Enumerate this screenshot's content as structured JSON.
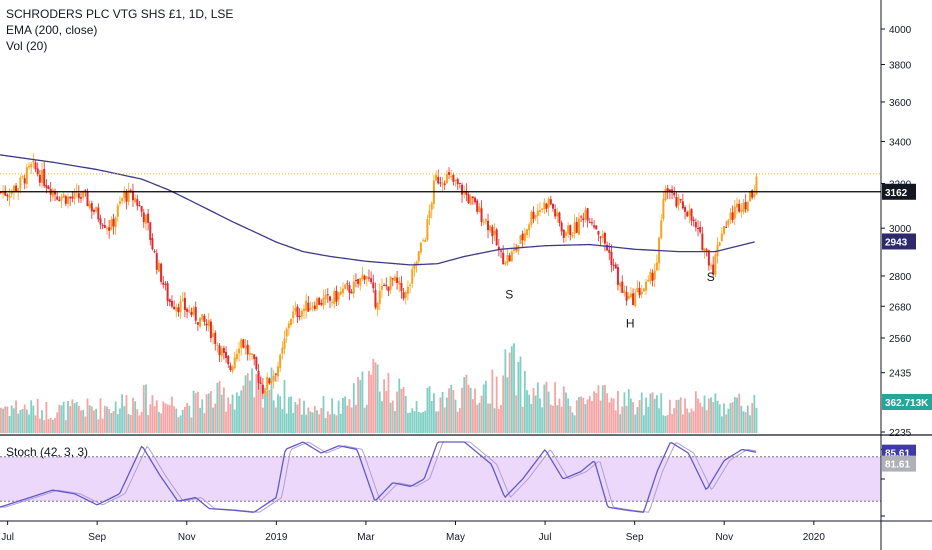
{
  "legend": {
    "symbol": "SCHRODERS PLC VTG SHS £1, 1D, LSE",
    "ema": "EMA (200, close)",
    "vol": "Vol (20)",
    "stoch": "Stoch (42, 3, 3)"
  },
  "colors": {
    "up": "#f7a21b",
    "down": "#e0282e",
    "ema": "#3f3a86",
    "vol_up": "#7fcfc4",
    "vol_down": "#f6a3a3",
    "stoch_k": "#6459c9",
    "stoch_bg": "#ecd8fb",
    "resistance": "#000000",
    "last_price": "#f7b500"
  },
  "chart_data": [
    {
      "type": "candlestick",
      "title": "SCHRODERS PLC VTG SHS £1, 1D, LSE",
      "y_axis_ticks": [
        2235,
        2435,
        2560,
        2680,
        2800,
        3000,
        3200,
        3400,
        3600,
        3800,
        4000
      ],
      "y_axis_tick_labels": [
        "2235",
        "2435",
        "2560",
        "2680",
        "2800",
        "3000",
        "3200",
        "3400",
        "3600",
        "3800",
        "4000"
      ],
      "x_axis_labels": [
        "Jul",
        "Sep",
        "Nov",
        "2019",
        "Mar",
        "May",
        "Jul",
        "Sep",
        "Nov",
        "2020"
      ],
      "x_axis_positions": [
        0.0,
        2.0,
        4.0,
        6.0,
        8.0,
        10.0,
        12.0,
        14.0,
        16.0,
        18.0
      ],
      "log_scale": true,
      "x_range_months_from_jul_2018": [
        -0.17,
        19.5
      ],
      "price_path": [
        [
          0.0,
          3160
        ],
        [
          0.25,
          3190
        ],
        [
          0.55,
          3280
        ],
        [
          0.8,
          3220
        ],
        [
          1.1,
          3150
        ],
        [
          1.4,
          3130
        ],
        [
          1.7,
          3140
        ],
        [
          2.0,
          3060
        ],
        [
          2.3,
          3000
        ],
        [
          2.6,
          3150
        ],
        [
          2.85,
          3130
        ],
        [
          3.1,
          3030
        ],
        [
          3.3,
          2870
        ],
        [
          3.6,
          2700
        ],
        [
          3.9,
          2680
        ],
        [
          4.2,
          2640
        ],
        [
          4.5,
          2600
        ],
        [
          4.75,
          2520
        ],
        [
          4.95,
          2440
        ],
        [
          5.2,
          2560
        ],
        [
          5.45,
          2480
        ],
        [
          5.7,
          2380
        ],
        [
          5.9,
          2420
        ],
        [
          6.1,
          2480
        ],
        [
          6.3,
          2640
        ],
        [
          6.6,
          2670
        ],
        [
          6.9,
          2700
        ],
        [
          7.2,
          2700
        ],
        [
          7.5,
          2740
        ],
        [
          7.8,
          2760
        ],
        [
          8.0,
          2820
        ],
        [
          8.2,
          2700
        ],
        [
          8.35,
          2740
        ],
        [
          8.6,
          2780
        ],
        [
          8.9,
          2720
        ],
        [
          9.1,
          2840
        ],
        [
          9.35,
          2990
        ],
        [
          9.55,
          3220
        ],
        [
          9.8,
          3230
        ],
        [
          10.1,
          3180
        ],
        [
          10.5,
          3080
        ],
        [
          10.8,
          3000
        ],
        [
          11.0,
          2880
        ],
        [
          11.2,
          2870
        ],
        [
          11.5,
          2960
        ],
        [
          11.7,
          3060
        ],
        [
          11.9,
          3090
        ],
        [
          12.1,
          3120
        ],
        [
          12.4,
          2980
        ],
        [
          12.7,
          3000
        ],
        [
          12.9,
          3080
        ],
        [
          13.1,
          3020
        ],
        [
          13.3,
          2950
        ],
        [
          13.5,
          2860
        ],
        [
          13.7,
          2740
        ],
        [
          13.9,
          2700
        ],
        [
          14.1,
          2740
        ],
        [
          14.3,
          2760
        ],
        [
          14.5,
          2860
        ],
        [
          14.7,
          3200
        ],
        [
          14.9,
          3110
        ],
        [
          15.15,
          3090
        ],
        [
          15.35,
          3000
        ],
        [
          15.55,
          2920
        ],
        [
          15.75,
          2830
        ],
        [
          15.95,
          3000
        ],
        [
          16.15,
          3050
        ],
        [
          16.35,
          3110
        ],
        [
          16.55,
          3120
        ],
        [
          16.7,
          3200
        ],
        [
          16.72,
          3245
        ]
      ],
      "ema_200_path": [
        [
          -0.17,
          3335
        ],
        [
          1.0,
          3300
        ],
        [
          2.0,
          3265
        ],
        [
          3.0,
          3220
        ],
        [
          3.6,
          3170
        ],
        [
          4.2,
          3110
        ],
        [
          5.0,
          3030
        ],
        [
          6.0,
          2940
        ],
        [
          6.6,
          2900
        ],
        [
          7.2,
          2880
        ],
        [
          8.0,
          2860
        ],
        [
          9.0,
          2845
        ],
        [
          9.6,
          2850
        ],
        [
          10.2,
          2880
        ],
        [
          11.0,
          2910
        ],
        [
          12.0,
          2925
        ],
        [
          13.0,
          2930
        ],
        [
          14.0,
          2910
        ],
        [
          15.0,
          2900
        ],
        [
          15.8,
          2900
        ],
        [
          16.72,
          2943
        ]
      ],
      "resistance_level": 3162,
      "resistance_label": "3162",
      "ema_last_label": "2943",
      "last_price_level": 3245,
      "annotations": [
        {
          "text": "S",
          "x": 11.2,
          "price": 2710
        },
        {
          "text": "H",
          "x": 13.9,
          "price": 2600
        },
        {
          "text": "S",
          "x": 15.7,
          "price": 2780
        }
      ]
    },
    {
      "type": "bar",
      "title": "Vol (20)",
      "last_value_label": "362.713K",
      "volume_profile": [
        [
          0.0,
          0.38
        ],
        [
          1.0,
          0.32
        ],
        [
          2.0,
          0.35
        ],
        [
          3.0,
          0.48
        ],
        [
          4.0,
          0.4
        ],
        [
          5.0,
          0.55
        ],
        [
          5.8,
          0.7
        ],
        [
          6.5,
          0.38
        ],
        [
          7.5,
          0.35
        ],
        [
          8.2,
          0.82
        ],
        [
          9.0,
          0.4
        ],
        [
          10.0,
          0.55
        ],
        [
          11.0,
          0.65
        ],
        [
          11.2,
          1.0
        ],
        [
          11.6,
          0.6
        ],
        [
          12.5,
          0.45
        ],
        [
          13.5,
          0.48
        ],
        [
          14.5,
          0.4
        ],
        [
          15.5,
          0.45
        ],
        [
          16.72,
          0.38
        ]
      ]
    },
    {
      "type": "line",
      "title": "Stoch (42, 3, 3)",
      "bands": [
        20,
        80
      ],
      "k_label": "85.61",
      "d_label": "81.61",
      "k_path": [
        [
          -0.17,
          12
        ],
        [
          0.5,
          25
        ],
        [
          1.0,
          35
        ],
        [
          1.5,
          30
        ],
        [
          2.0,
          15
        ],
        [
          2.5,
          30
        ],
        [
          3.0,
          95
        ],
        [
          3.4,
          55
        ],
        [
          3.8,
          20
        ],
        [
          4.2,
          25
        ],
        [
          4.5,
          10
        ],
        [
          5.0,
          8
        ],
        [
          5.5,
          5
        ],
        [
          6.0,
          25
        ],
        [
          6.2,
          90
        ],
        [
          6.6,
          100
        ],
        [
          7.0,
          85
        ],
        [
          7.4,
          95
        ],
        [
          7.8,
          90
        ],
        [
          8.2,
          20
        ],
        [
          8.6,
          45
        ],
        [
          9.0,
          40
        ],
        [
          9.3,
          50
        ],
        [
          9.6,
          100
        ],
        [
          10.2,
          100
        ],
        [
          10.8,
          70
        ],
        [
          11.1,
          25
        ],
        [
          11.5,
          50
        ],
        [
          12.0,
          90
        ],
        [
          12.4,
          50
        ],
        [
          12.8,
          60
        ],
        [
          13.1,
          75
        ],
        [
          13.4,
          12
        ],
        [
          13.8,
          8
        ],
        [
          14.2,
          5
        ],
        [
          14.5,
          60
        ],
        [
          14.8,
          100
        ],
        [
          15.2,
          85
        ],
        [
          15.6,
          35
        ],
        [
          16.0,
          75
        ],
        [
          16.4,
          90
        ],
        [
          16.72,
          86
        ]
      ]
    }
  ]
}
